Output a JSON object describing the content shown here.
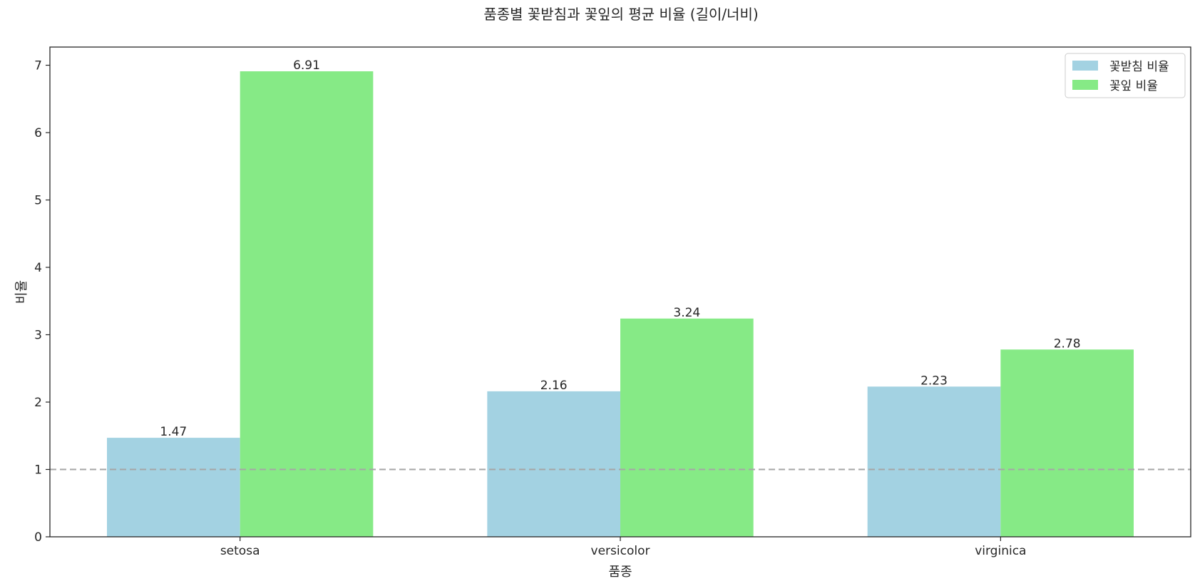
{
  "chart_data": {
    "type": "bar",
    "title": "품종별 꽃받침과 꽃잎의 평균 비율 (길이/너비)",
    "xlabel": "품종",
    "ylabel": "비율",
    "categories": [
      "setosa",
      "versicolor",
      "virginica"
    ],
    "series": [
      {
        "name": "꽃받침 비율",
        "values": [
          1.47,
          2.16,
          2.23
        ],
        "color": "#a3d2e2"
      },
      {
        "name": "꽃잎 비율",
        "values": [
          6.91,
          3.24,
          2.78
        ],
        "color": "#86ea86"
      }
    ],
    "data_labels": [
      [
        "1.47",
        "2.16",
        "2.23"
      ],
      [
        "6.91",
        "3.24",
        "2.78"
      ]
    ],
    "ylim": [
      0,
      7.27
    ],
    "yticks": [
      0,
      1,
      2,
      3,
      4,
      5,
      6,
      7
    ],
    "reference_line": {
      "y": 1,
      "style": "dashed",
      "color": "#a6a6a6"
    },
    "grid": false,
    "legend_position": "top-right"
  }
}
